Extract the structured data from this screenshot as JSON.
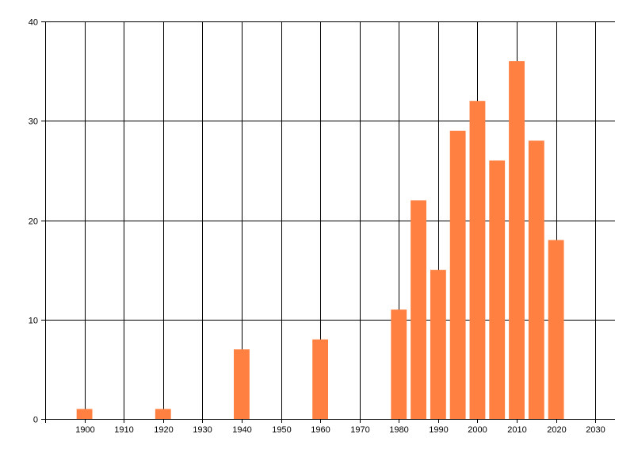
{
  "chart_data": {
    "type": "bar",
    "title": "",
    "xlabel": "",
    "ylabel": "",
    "x": [
      1900,
      1920,
      1940,
      1960,
      1980,
      1985,
      1990,
      1995,
      2000,
      2005,
      2010,
      2015,
      2020
    ],
    "values": [
      1,
      1,
      7,
      8,
      11,
      22,
      15,
      29,
      32,
      26,
      36,
      28,
      18
    ],
    "xlim": [
      1890,
      2035
    ],
    "ylim": [
      0,
      40
    ],
    "x_ticks": [
      1900,
      1910,
      1920,
      1930,
      1940,
      1950,
      1960,
      1970,
      1980,
      1990,
      2000,
      2010,
      2020,
      2030
    ],
    "x_tick_labels": [
      "1900",
      "1910",
      "1920",
      "1930",
      "1940",
      "1950",
      "1960",
      "1970",
      "1980",
      "1990",
      "2000",
      "2010",
      "2020",
      "2030"
    ],
    "y_ticks": [
      0,
      10,
      20,
      30,
      40
    ],
    "y_tick_labels": [
      "0",
      "10",
      "20",
      "30",
      "40"
    ],
    "grid": true,
    "bar_color": "#ff8040",
    "grid_color": "#000000",
    "bar_width_years": 4
  }
}
